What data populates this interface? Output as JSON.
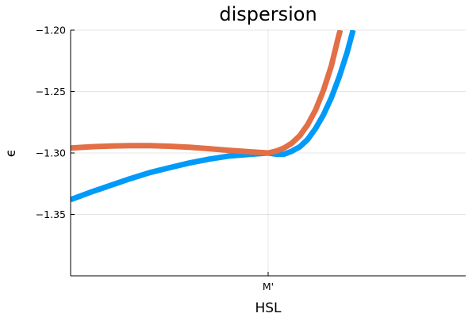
{
  "chart_data": {
    "type": "line",
    "title": "dispersion",
    "xlabel": "HSL",
    "ylabel": "ϵ",
    "x_ticks": [
      {
        "x": 0,
        "label": "M'"
      }
    ],
    "y_ticks": [
      -1.2,
      -1.25,
      -1.3,
      -1.35
    ],
    "y_tick_labels": [
      "−1.20",
      "−1.25",
      "−1.30",
      "−1.35"
    ],
    "xlim": [
      -1,
      1
    ],
    "ylim": [
      -1.4,
      -1.2
    ],
    "grid": true,
    "legend": "none",
    "series": [
      {
        "color": "#009af9",
        "points": [
          [
            -1.0,
            -1.338
          ],
          [
            -0.9,
            -1.332
          ],
          [
            -0.8,
            -1.3265
          ],
          [
            -0.7,
            -1.321
          ],
          [
            -0.6,
            -1.316
          ],
          [
            -0.5,
            -1.312
          ],
          [
            -0.4,
            -1.3082
          ],
          [
            -0.3,
            -1.305
          ],
          [
            -0.2,
            -1.3025
          ],
          [
            -0.1,
            -1.3012
          ],
          [
            0.0,
            -1.3
          ],
          [
            0.04,
            -1.301
          ],
          [
            0.08,
            -1.301
          ],
          [
            0.12,
            -1.2985
          ],
          [
            0.16,
            -1.295
          ],
          [
            0.2,
            -1.289
          ],
          [
            0.24,
            -1.28
          ],
          [
            0.28,
            -1.269
          ],
          [
            0.32,
            -1.255
          ],
          [
            0.36,
            -1.238
          ],
          [
            0.4,
            -1.218
          ],
          [
            0.43,
            -1.2
          ]
        ]
      },
      {
        "color": "#e26f46",
        "points": [
          [
            -1.0,
            -1.296
          ],
          [
            -0.9,
            -1.295
          ],
          [
            -0.8,
            -1.2943
          ],
          [
            -0.7,
            -1.294
          ],
          [
            -0.6,
            -1.294
          ],
          [
            -0.5,
            -1.2945
          ],
          [
            -0.4,
            -1.2953
          ],
          [
            -0.3,
            -1.2965
          ],
          [
            -0.2,
            -1.2978
          ],
          [
            -0.1,
            -1.299
          ],
          [
            0.0,
            -1.3
          ],
          [
            0.04,
            -1.2985
          ],
          [
            0.08,
            -1.296
          ],
          [
            0.12,
            -1.292
          ],
          [
            0.16,
            -1.286
          ],
          [
            0.2,
            -1.277
          ],
          [
            0.24,
            -1.265
          ],
          [
            0.28,
            -1.249
          ],
          [
            0.32,
            -1.229
          ],
          [
            0.355,
            -1.206
          ],
          [
            0.365,
            -1.2
          ]
        ]
      }
    ]
  }
}
